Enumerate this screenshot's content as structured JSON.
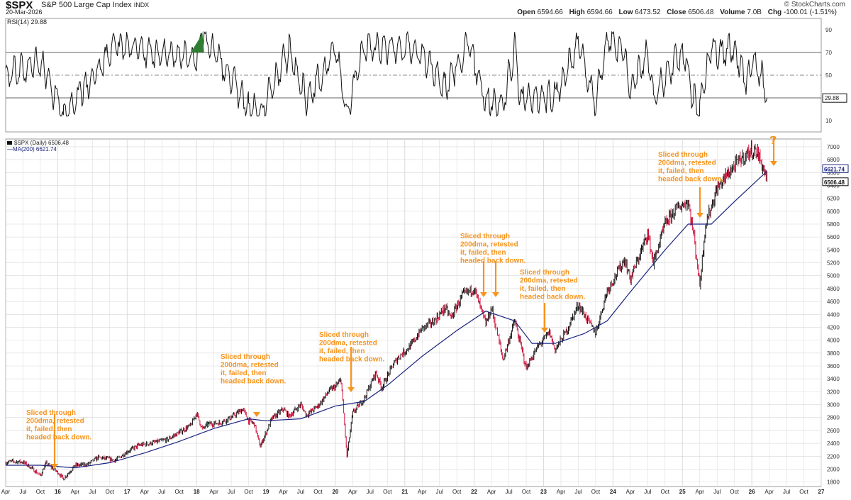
{
  "header": {
    "symbol": "$SPX",
    "name": "S&P 500 Large Cap Index",
    "exchange": "INDX",
    "date": "20-Mar-2026",
    "brand": "© StockCharts.com",
    "open_label": "Open",
    "open": "6594.66",
    "high_label": "High",
    "high": "6594.66",
    "low_label": "Low",
    "low": "6473.52",
    "close_label": "Close",
    "close": "6506.48",
    "volume_label": "Volume",
    "volume": "7.0B",
    "chg_label": "Chg",
    "chg": "-100.01 (-1.51%)"
  },
  "colors": {
    "price": "#111111",
    "down": "#d0103a",
    "ma": "#1a237e",
    "arrow": "#f7941d",
    "annotation": "#f7941d",
    "rsi_fill": "#2e7d32",
    "grid": "#d8d8d8"
  },
  "chart_data": [
    {
      "type": "line",
      "title": "RSI(14) 29.88",
      "y_ticks": [
        10,
        30,
        50,
        70,
        90
      ],
      "ylim": [
        0,
        100
      ],
      "reference_lines": [
        30,
        50,
        70
      ],
      "last_value": "29.88",
      "series": [
        {
          "name": "RSI(14)",
          "x": [
            "2015-04",
            "2015-10",
            "2016-02",
            "2016-11",
            "2017-03",
            "2018-01",
            "2018-02",
            "2018-10",
            "2018-12",
            "2019-05",
            "2019-08",
            "2020-01",
            "2020-03",
            "2020-06",
            "2021-03",
            "2021-08",
            "2021-12",
            "2022-03",
            "2022-06",
            "2022-08",
            "2022-09",
            "2023-03",
            "2023-07",
            "2023-10",
            "2023-12",
            "2024-03",
            "2024-04",
            "2024-07",
            "2024-08",
            "2025-01",
            "2025-03",
            "2025-04",
            "2025-06",
            "2025-08",
            "2025-10",
            "2025-12",
            "2026-01",
            "2026-03",
            "2026-03-20"
          ],
          "values": [
            50,
            62,
            15,
            76,
            72,
            65,
            86,
            22,
            17,
            72,
            28,
            74,
            18,
            74,
            75,
            40,
            78,
            28,
            25,
            74,
            28,
            32,
            78,
            25,
            82,
            70,
            35,
            72,
            30,
            72,
            28,
            20,
            75,
            68,
            75,
            42,
            65,
            45,
            29.88
          ]
        }
      ]
    },
    {
      "type": "line",
      "title": "$SPX (Daily) 6506.48",
      "y_ticks": [
        1800,
        2000,
        2200,
        2400,
        2600,
        2800,
        3000,
        3200,
        3400,
        3600,
        3800,
        4000,
        4200,
        4400,
        4600,
        4800,
        5000,
        5200,
        5400,
        5600,
        5800,
        6000,
        6200,
        6400,
        6600,
        6800,
        7000
      ],
      "ylim": [
        1730,
        7120
      ],
      "x_tick_labels": [
        "Apr",
        "Jul",
        "Oct",
        "16",
        "Apr",
        "Jul",
        "Oct",
        "17",
        "Apr",
        "Jul",
        "Oct",
        "18",
        "Apr",
        "Jul",
        "Oct",
        "19",
        "Apr",
        "Jul",
        "Oct",
        "20",
        "Apr",
        "Jul",
        "Oct",
        "21",
        "Apr",
        "Jul",
        "Oct",
        "22",
        "Apr",
        "Jul",
        "Oct",
        "23",
        "Apr",
        "Jul",
        "Oct",
        "24",
        "Apr",
        "Jul",
        "Oct",
        "25",
        "Apr",
        "Jul",
        "Oct",
        "26",
        "Apr",
        "Jul",
        "Oct",
        "27"
      ],
      "x_range": [
        "2015-04",
        "2027-01"
      ],
      "last_values": [
        "6621.74",
        "6506.48"
      ],
      "series": [
        {
          "name": "$SPX (Daily) 6506.48",
          "x": [
            "2015-04",
            "2015-05",
            "2015-07",
            "2015-08",
            "2015-10",
            "2015-11",
            "2016-01",
            "2016-02",
            "2016-04",
            "2016-06",
            "2016-08",
            "2016-11",
            "2017-01",
            "2017-03",
            "2017-05",
            "2017-08",
            "2017-10",
            "2017-12",
            "2018-01",
            "2018-02",
            "2018-03",
            "2018-05",
            "2018-07",
            "2018-09",
            "2018-10",
            "2018-11",
            "2018-12",
            "2019-02",
            "2019-04",
            "2019-05",
            "2019-07",
            "2019-08",
            "2019-10",
            "2019-12",
            "2020-01",
            "2020-02",
            "2020-03",
            "2020-04",
            "2020-06",
            "2020-08",
            "2020-09",
            "2020-11",
            "2020-12",
            "2021-02",
            "2021-04",
            "2021-06",
            "2021-08",
            "2021-09",
            "2021-11",
            "2022-01",
            "2022-03",
            "2022-04",
            "2022-06",
            "2022-08",
            "2022-10",
            "2022-12",
            "2023-02",
            "2023-03",
            "2023-05",
            "2023-07",
            "2023-10",
            "2023-12",
            "2024-03",
            "2024-04",
            "2024-07",
            "2024-08",
            "2024-10",
            "2024-12",
            "2025-02",
            "2025-03",
            "2025-04",
            "2025-05",
            "2025-07",
            "2025-09",
            "2025-11",
            "2026-01",
            "2026-02",
            "2026-03-20"
          ],
          "values": [
            2100,
            2120,
            2110,
            2050,
            1900,
            2090,
            1950,
            1850,
            2060,
            2070,
            2180,
            2140,
            2270,
            2370,
            2400,
            2460,
            2570,
            2680,
            2870,
            2620,
            2700,
            2720,
            2800,
            2930,
            2750,
            2700,
            2350,
            2780,
            2930,
            2820,
            3000,
            2840,
            2980,
            3220,
            3280,
            3380,
            2200,
            2870,
            3100,
            3500,
            3260,
            3620,
            3750,
            3910,
            4180,
            4290,
            4500,
            4350,
            4700,
            4800,
            4250,
            4500,
            3700,
            4300,
            3570,
            3900,
            4120,
            3850,
            4150,
            4550,
            4110,
            4770,
            5250,
            4950,
            5650,
            5200,
            5800,
            6050,
            6150,
            5600,
            4850,
            5800,
            6350,
            6600,
            6800,
            6950,
            6900,
            6506.48
          ]
        },
        {
          "name": "MA(200) 6621.74",
          "x": [
            "2015-04",
            "2015-10",
            "2016-04",
            "2016-10",
            "2017-04",
            "2017-10",
            "2018-04",
            "2018-10",
            "2019-01",
            "2019-07",
            "2020-01",
            "2020-06",
            "2020-10",
            "2021-04",
            "2021-10",
            "2022-03",
            "2022-08",
            "2022-11",
            "2023-03",
            "2023-08",
            "2023-12",
            "2024-04",
            "2024-10",
            "2025-02",
            "2025-06",
            "2025-10",
            "2026-03-20"
          ],
          "values": [
            2060,
            2060,
            2020,
            2100,
            2250,
            2430,
            2630,
            2780,
            2750,
            2780,
            2980,
            3050,
            3300,
            3750,
            4150,
            4450,
            4300,
            3950,
            3950,
            4100,
            4300,
            4750,
            5400,
            5800,
            5800,
            6150,
            6621.74
          ]
        }
      ],
      "annotations": [
        {
          "text": [
            "Sliced through",
            "200dma, retested",
            "it, failed, then",
            "headed back down."
          ],
          "arrow_x": [
            "2016-01"
          ]
        },
        {
          "text": [
            "Sliced through",
            "200dma, retested",
            "it, failed, then",
            "headed back down."
          ],
          "arrow_x": [
            "2018-12"
          ]
        },
        {
          "text": [
            "Sliced through",
            "200dma, retested",
            "it, failed, then",
            "headed back down."
          ],
          "arrow_x": [
            "2020-03"
          ]
        },
        {
          "text": [
            "Sliced through",
            "200dma, retested",
            "it, failed, then",
            "headed back down."
          ],
          "arrow_x": [
            "2022-03",
            "2022-05"
          ]
        },
        {
          "text": [
            "Sliced through",
            "200dma, retested",
            "it, failed, then",
            "headed back down."
          ],
          "arrow_x": [
            "2023-01"
          ]
        },
        {
          "text": [
            "Sliced through",
            "200dma, retested",
            "it, failed, then",
            "headed back down."
          ],
          "arrow_x": [
            "2025-03"
          ]
        },
        {
          "text": [
            "?"
          ],
          "arrow_x": [
            "2026-04"
          ]
        }
      ]
    }
  ]
}
